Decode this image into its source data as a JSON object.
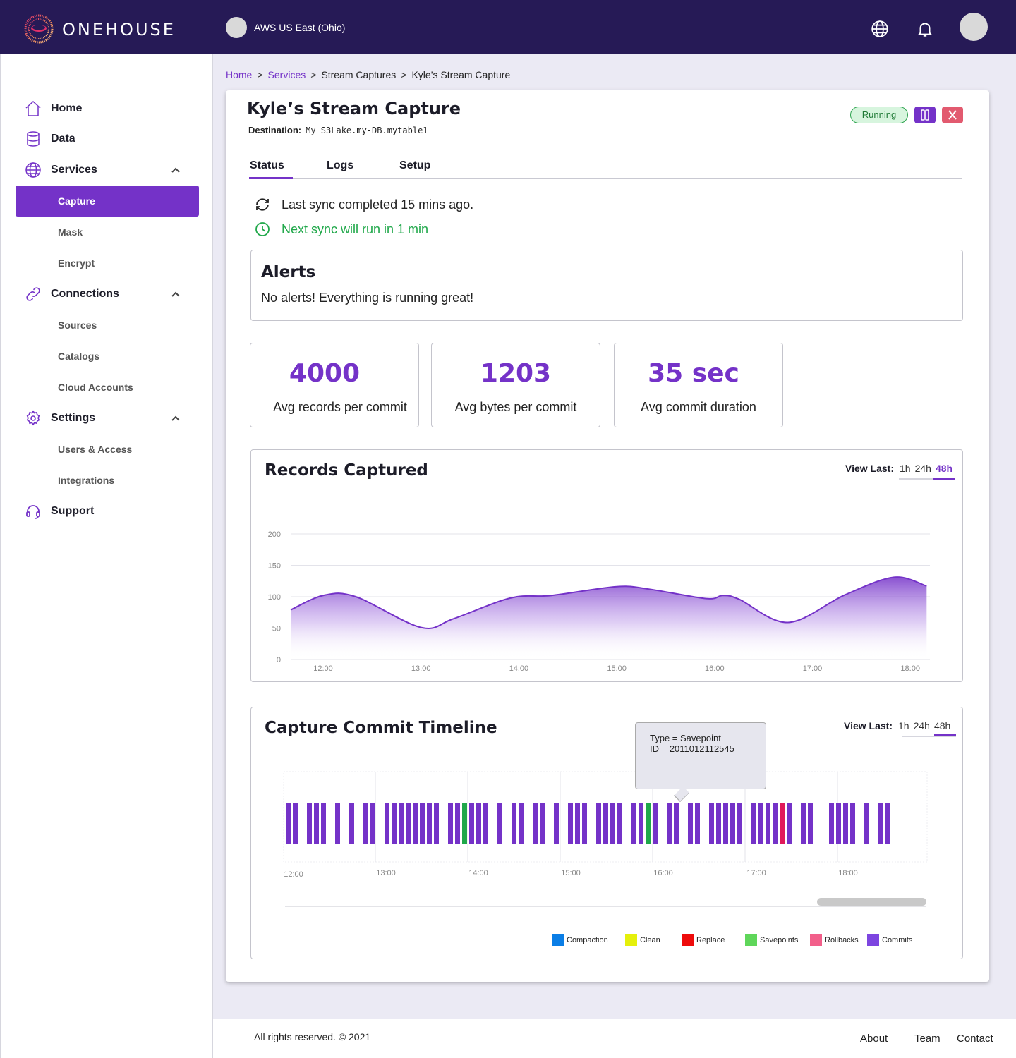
{
  "header": {
    "brand": "ONEHOUSE",
    "region": "AWS US East (Ohio)",
    "icons": [
      "globe-icon",
      "bell-icon",
      "avatar"
    ]
  },
  "sidebar": {
    "items": [
      {
        "label": "Home",
        "icon": "home-icon"
      },
      {
        "label": "Data",
        "icon": "database-icon"
      },
      {
        "label": "Services",
        "icon": "globe-icon"
      },
      {
        "label": "Connections",
        "icon": "link-icon"
      },
      {
        "label": "Settings",
        "icon": "gear-icon"
      },
      {
        "label": "Support",
        "icon": "headset-icon"
      }
    ],
    "services_sub": [
      "Capture",
      "Mask",
      "Encrypt"
    ],
    "connections_sub": [
      "Sources",
      "Catalogs",
      "Cloud Accounts"
    ],
    "settings_sub": [
      "Users & Access",
      "Integrations"
    ]
  },
  "breadcrumb": [
    "Home",
    "Services",
    "Stream Captures",
    "Kyle’s Stream Capture"
  ],
  "capture": {
    "title": "Kyle’s Stream Capture",
    "destination_label": "Destination:",
    "destination": "My_S3Lake.my-DB.mytable1",
    "status": "Running"
  },
  "tabs": [
    "Status",
    "Logs",
    "Setup"
  ],
  "status": {
    "last_sync": "Last sync completed 15 mins ago.",
    "next_sync": "Next sync will run in 1 min"
  },
  "alerts": {
    "title": "Alerts",
    "message": "No alerts! Everything is running great!"
  },
  "metrics": [
    {
      "value": "4000",
      "label": "Avg records per commit"
    },
    {
      "value": "1203",
      "label": "Avg bytes per commit"
    },
    {
      "value": "35 sec",
      "label": "Avg commit duration"
    }
  ],
  "view_last": {
    "label": "View Last:",
    "options": [
      "1h",
      "24h",
      "48h"
    ],
    "selected": "48h"
  },
  "records_panel": {
    "title": "Records Captured"
  },
  "timeline_panel": {
    "title": "Capture Commit Timeline"
  },
  "tooltip": {
    "line1": "Type = Savepoint",
    "line2": "ID = 2011012112545"
  },
  "legend": [
    {
      "label": "Compaction",
      "color": "#0a7ee6"
    },
    {
      "label": "Clean",
      "color": "#e5f00b"
    },
    {
      "label": "Replace",
      "color": "#ee0b0b"
    },
    {
      "label": "Savepoints",
      "color": "#5fd65a"
    },
    {
      "label": "Rollbacks",
      "color": "#f25f8a"
    },
    {
      "label": "Commits",
      "color": "#7d45e0"
    }
  ],
  "chart_data": [
    {
      "type": "area",
      "title": "Records Captured",
      "x": [
        "11:40",
        "12:00",
        "12:20",
        "13:00",
        "13:20",
        "13:55",
        "14:20",
        "15:00",
        "15:20",
        "15:55",
        "16:05",
        "16:15",
        "16:45",
        "17:20",
        "17:50",
        "18:10"
      ],
      "values": [
        79,
        102,
        100,
        51,
        65,
        98,
        102,
        116,
        112,
        97,
        102,
        96,
        59,
        103,
        131,
        117
      ],
      "xticks": [
        "12:00",
        "13:00",
        "14:00",
        "15:00",
        "16:00",
        "17:00",
        "18:00"
      ],
      "yticks": [
        0,
        50,
        100,
        150,
        200
      ],
      "ylim": [
        0,
        200
      ],
      "grid": true,
      "color": "#7432c8"
    },
    {
      "type": "bar",
      "title": "Capture Commit Timeline",
      "xticks": [
        "12:00",
        "13:00",
        "14:00",
        "15:00",
        "16:00",
        "17:00",
        "18:00"
      ],
      "commits": [
        "commit",
        "commit",
        "gap",
        "commit",
        "commit",
        "commit",
        "gap",
        "commit",
        "gap",
        "commit",
        "gap",
        "commit",
        "commit",
        "gap",
        "commit",
        "commit",
        "commit",
        "commit",
        "commit",
        "commit",
        "commit",
        "commit",
        "gap",
        "commit",
        "commit",
        "savepoint",
        "commit",
        "commit",
        "commit",
        "gap",
        "commit",
        "gap",
        "commit",
        "commit",
        "gap",
        "commit",
        "commit",
        "gap",
        "commit",
        "gap",
        "commit",
        "commit",
        "commit",
        "gap",
        "commit",
        "commit",
        "commit",
        "commit",
        "gap",
        "commit",
        "commit",
        "savepoint",
        "commit",
        "gap",
        "commit",
        "commit",
        "gap",
        "commit",
        "commit",
        "gap",
        "commit",
        "commit",
        "commit",
        "commit",
        "commit",
        "gap",
        "commit",
        "commit",
        "commit",
        "commit",
        "rollback",
        "commit",
        "gap",
        "commit",
        "commit",
        "gap",
        "gap",
        "commit",
        "commit",
        "commit",
        "commit",
        "gap",
        "commit",
        "gap",
        "commit",
        "commit"
      ]
    }
  ],
  "footer": {
    "copyright": "All rights reserved. © 2021",
    "links": [
      "About",
      "Team",
      "Contact"
    ]
  }
}
